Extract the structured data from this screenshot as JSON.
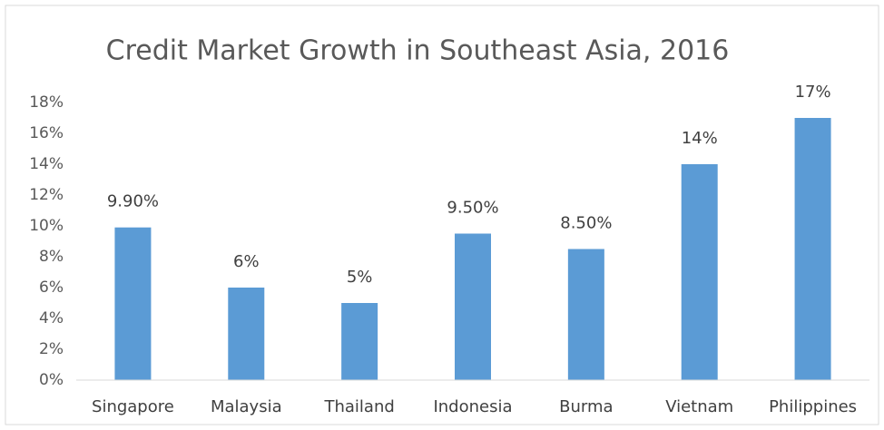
{
  "chart_data": {
    "type": "bar",
    "title": "Credit Market Growth in Southeast Asia, 2016",
    "categories": [
      "Singapore",
      "Malaysia",
      "Thailand",
      "Indonesia",
      "Burma",
      "Vietnam",
      "Philippines"
    ],
    "values": [
      9.9,
      6,
      5,
      9.5,
      8.5,
      14,
      17
    ],
    "value_labels": [
      "9.90%",
      "6%",
      "5%",
      "9.50%",
      "8.50%",
      "14%",
      "17%"
    ],
    "color": "#5b9bd5",
    "ylim": [
      0,
      18
    ],
    "yticks": [
      {
        "value": 0,
        "label": "0%"
      },
      {
        "value": 2,
        "label": "2%"
      },
      {
        "value": 4,
        "label": "4%"
      },
      {
        "value": 6,
        "label": "6%"
      },
      {
        "value": 8,
        "label": "8%"
      },
      {
        "value": 10,
        "label": "10%"
      },
      {
        "value": 12,
        "label": "12%"
      },
      {
        "value": 14,
        "label": "14%"
      },
      {
        "value": 16,
        "label": "16%"
      },
      {
        "value": 18,
        "label": "18%"
      }
    ],
    "grid": false
  }
}
